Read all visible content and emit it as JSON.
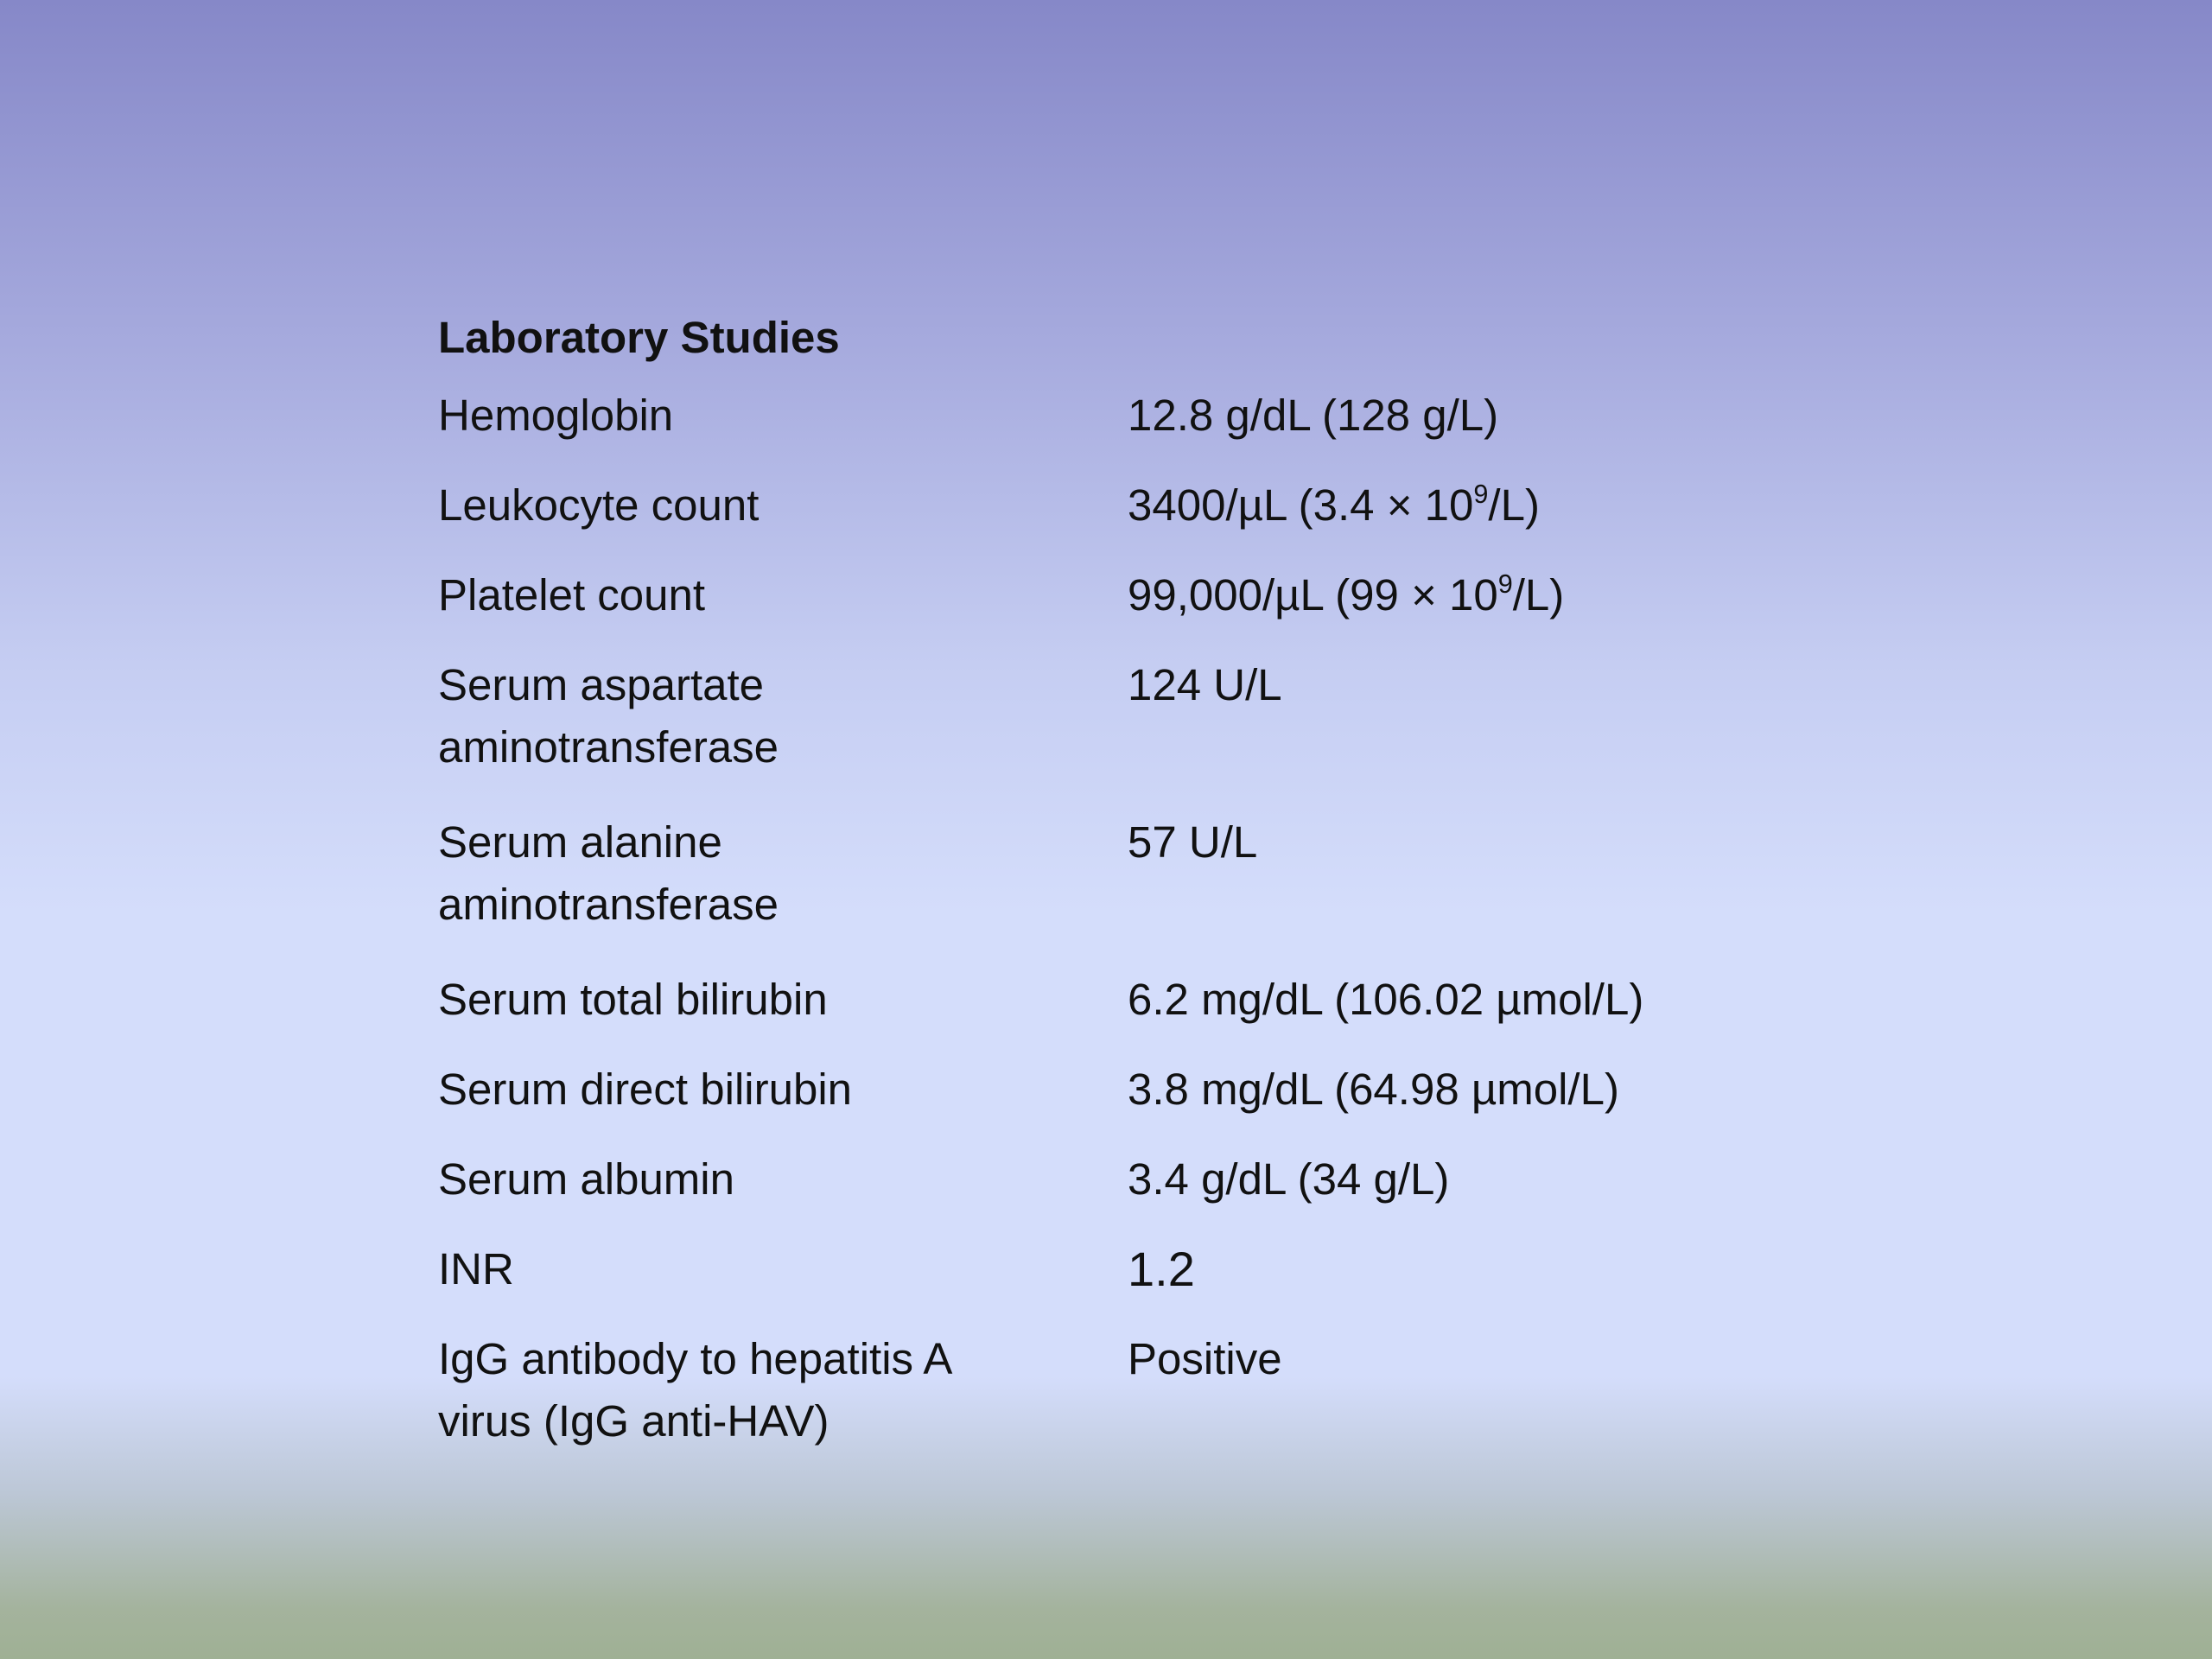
{
  "slide": {
    "heading": "Laboratory Studies",
    "rows": [
      {
        "name": "Hemoglobin",
        "value": "12.8 g/dL (128 g/L)"
      },
      {
        "name": "Leukocyte count",
        "value_pre": "3400/µL (3.4 × 10",
        "value_sup": "9",
        "value_post": "/L)"
      },
      {
        "name": "Platelet count",
        "value_pre": "99,000/µL (99 × 10",
        "value_sup": "9",
        "value_post": "/L)"
      },
      {
        "name_line1": "Serum aspartate",
        "name_line2": "aminotransferase",
        "value": "124 U/L"
      },
      {
        "name_line1": "Serum alanine",
        "name_line2": "aminotransferase",
        "value": "57 U/L"
      },
      {
        "name": "Serum total bilirubin",
        "value": "6.2 mg/dL (106.02 µmol/L)"
      },
      {
        "name": "Serum direct bilirubin",
        "value": "3.8 mg/dL (64.98 µmol/L)"
      },
      {
        "name": "Serum albumin",
        "value": "3.4 g/dL (34 g/L)"
      },
      {
        "name": "INR",
        "value": "1.2"
      },
      {
        "name_line1": "IgG antibody to hepatitis A",
        "name_line2": "virus (IgG anti-HAV)",
        "value": "Positive"
      }
    ]
  }
}
